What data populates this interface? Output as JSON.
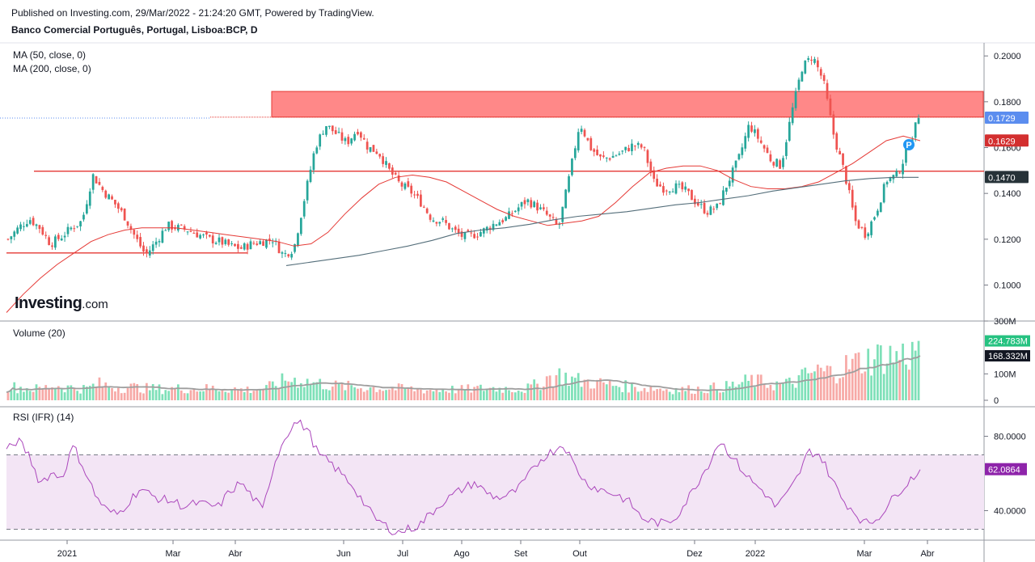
{
  "header": {
    "published": "Published on Investing.com, 29/Mar/2022 - 21:24:20 GMT, Powered by TradingView.",
    "symbol": "Banco Comercial Português, Portugal, Lisboa:BCP, D"
  },
  "logo": {
    "main": "Investing",
    "suffix": ".com"
  },
  "colors": {
    "up": "#26a69a",
    "down": "#ef5350",
    "ma50": "#e53935",
    "ma200": "#546e7a",
    "vol_up": "#7ee0b8",
    "vol_down": "#f7a9a6",
    "rsi": "#ab47bc",
    "rsi_band": "#f3e5f5",
    "resistance": "#ff7b7b",
    "last_tag": "#5b8def"
  },
  "chart_data": [
    {
      "type": "candlestick",
      "title": "Banco Comercial Português, Portugal, Lisboa:BCP, D",
      "indicators": [
        "MA (50, close, 0)",
        "MA (200, close, 0)"
      ],
      "ylim": [
        0.085,
        0.205
      ],
      "yticks": [
        "0.2000",
        "0.1800",
        "0.1600",
        "0.1400",
        "0.1200",
        "0.1000"
      ],
      "x_labels": [
        "2021",
        "Mar",
        "Abr",
        "Jun",
        "Jul",
        "Ago",
        "Set",
        "Out",
        "Dez",
        "2022",
        "Mar",
        "Abr"
      ],
      "close_path": [
        0.12,
        0.125,
        0.129,
        0.125,
        0.118,
        0.121,
        0.125,
        0.128,
        0.148,
        0.141,
        0.136,
        0.13,
        0.121,
        0.113,
        0.119,
        0.126,
        0.125,
        0.124,
        0.122,
        0.12,
        0.119,
        0.117,
        0.116,
        0.118,
        0.119,
        0.12,
        0.113,
        0.116,
        0.138,
        0.16,
        0.17,
        0.166,
        0.162,
        0.168,
        0.16,
        0.158,
        0.15,
        0.144,
        0.141,
        0.136,
        0.129,
        0.128,
        0.124,
        0.121,
        0.122,
        0.124,
        0.127,
        0.129,
        0.133,
        0.137,
        0.134,
        0.13,
        0.125,
        0.147,
        0.171,
        0.16,
        0.155,
        0.156,
        0.158,
        0.161,
        0.16,
        0.145,
        0.142,
        0.143,
        0.141,
        0.136,
        0.132,
        0.134,
        0.145,
        0.155,
        0.17,
        0.163,
        0.155,
        0.152,
        0.175,
        0.195,
        0.2,
        0.189,
        0.165,
        0.149,
        0.128,
        0.122,
        0.132,
        0.146,
        0.148,
        0.16,
        0.173
      ],
      "candle_count": 290,
      "last_close": 0.1729,
      "ma50": [
        0.088,
        0.096,
        0.103,
        0.109,
        0.114,
        0.119,
        0.122,
        0.124,
        0.125,
        0.125,
        0.125,
        0.124,
        0.123,
        0.122,
        0.121,
        0.12,
        0.119,
        0.117,
        0.118,
        0.123,
        0.131,
        0.138,
        0.144,
        0.147,
        0.148,
        0.147,
        0.145,
        0.141,
        0.137,
        0.133,
        0.13,
        0.128,
        0.126,
        0.127,
        0.128,
        0.13,
        0.136,
        0.143,
        0.149,
        0.151,
        0.152,
        0.152,
        0.15,
        0.146,
        0.143,
        0.142,
        0.142,
        0.143,
        0.145,
        0.149,
        0.153,
        0.158,
        0.163,
        0.165,
        0.163
      ],
      "ma50_last": 0.1629,
      "ma200": [
        0.1085,
        0.11,
        0.1115,
        0.113,
        0.115,
        0.117,
        0.1195,
        0.1225,
        0.124,
        0.125,
        0.1265,
        0.1285,
        0.13,
        0.131,
        0.132,
        0.1335,
        0.135,
        0.136,
        0.1375,
        0.139,
        0.141,
        0.1425,
        0.144,
        0.1455,
        0.1465,
        0.147,
        0.147
      ],
      "ma200_last": 0.147,
      "resistance_zone": [
        0.1733,
        0.1845
      ],
      "support_lines": [
        0.1497,
        0.114
      ],
      "last_tags": [
        "0.1729",
        "0.1629",
        "0.1470"
      ]
    },
    {
      "type": "bar",
      "title": "Volume (20)",
      "yticks": [
        "300M",
        "100M",
        "0"
      ],
      "ylim": [
        0,
        300
      ],
      "unit": "M",
      "profile": [
        52,
        48,
        45,
        42,
        58,
        50,
        46,
        44,
        62,
        55,
        48,
        50,
        46,
        44,
        42,
        45,
        44,
        42,
        46,
        45,
        43,
        40,
        42,
        45,
        65,
        80,
        75,
        68,
        62,
        55,
        52,
        50,
        48,
        46,
        45,
        44,
        42,
        40,
        38,
        42,
        40,
        42,
        44,
        46,
        45,
        44,
        42,
        58,
        85,
        95,
        82,
        72,
        68,
        62,
        58,
        52,
        48,
        46,
        44,
        42,
        40,
        42,
        44,
        48,
        52,
        60,
        75,
        68,
        62,
        58,
        70,
        95,
        110,
        105,
        120,
        135,
        150,
        160,
        170,
        165,
        175,
        180
      ],
      "last_volume": "224.783M",
      "last_ma": "168.332M"
    },
    {
      "type": "line",
      "title": "RSI (IFR) (14)",
      "yticks": [
        "80.0000",
        "40.0000"
      ],
      "ylim": [
        25,
        95
      ],
      "band": [
        30,
        70
      ],
      "values": [
        72,
        78,
        70,
        55,
        60,
        58,
        75,
        62,
        48,
        40,
        38,
        45,
        52,
        48,
        46,
        45,
        42,
        44,
        43,
        42,
        50,
        55,
        48,
        40,
        65,
        80,
        88,
        84,
        70,
        66,
        60,
        54,
        45,
        36,
        32,
        28,
        30,
        32,
        38,
        44,
        48,
        52,
        55,
        50,
        47,
        48,
        52,
        60,
        68,
        72,
        76,
        64,
        55,
        52,
        50,
        48,
        44,
        36,
        34,
        33,
        36,
        45,
        55,
        65,
        78,
        70,
        62,
        55,
        50,
        42,
        48,
        58,
        72,
        70,
        58,
        46,
        40,
        33,
        35,
        42,
        50,
        56,
        62
      ],
      "last_value": "62.0864"
    }
  ]
}
